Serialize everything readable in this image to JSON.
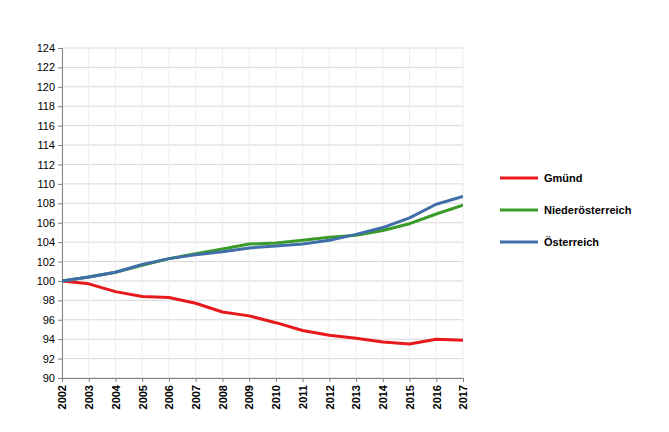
{
  "chart_data": {
    "type": "line",
    "categories": [
      "2002",
      "2003",
      "2004",
      "2005",
      "2006",
      "2007",
      "2008",
      "2009",
      "2010",
      "2011",
      "2012",
      "2013",
      "2014",
      "2015",
      "2016",
      "2017"
    ],
    "series": [
      {
        "name": "Gmünd",
        "color": "#e8191c",
        "values": [
          100,
          99.7,
          98.9,
          98.4,
          98.3,
          97.7,
          96.8,
          96.4,
          95.7,
          94.9,
          94.4,
          94.1,
          93.7,
          93.5,
          94.0,
          93.9
        ]
      },
      {
        "name": "Niederösterreich",
        "color": "#3a9b28",
        "values": [
          100,
          100.4,
          100.9,
          101.6,
          102.3,
          102.8,
          103.3,
          103.8,
          103.9,
          104.2,
          104.5,
          104.7,
          105.2,
          105.9,
          106.9,
          107.8
        ]
      },
      {
        "name": "Österreich",
        "color": "#3f6ea8",
        "values": [
          100,
          100.4,
          100.9,
          101.7,
          102.3,
          102.7,
          103.0,
          103.4,
          103.6,
          103.8,
          104.2,
          104.8,
          105.5,
          106.5,
          107.9,
          108.7
        ]
      }
    ],
    "ylim": [
      90,
      124
    ],
    "yticks": [
      90,
      92,
      94,
      96,
      98,
      100,
      102,
      104,
      106,
      108,
      110,
      112,
      114,
      116,
      118,
      120,
      122,
      124
    ],
    "grid": true,
    "legend": "right"
  }
}
